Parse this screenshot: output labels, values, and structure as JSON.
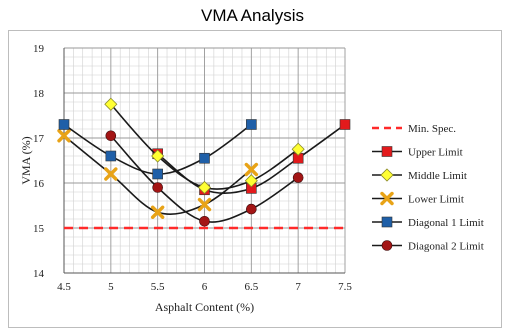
{
  "page_title": "VMA Analysis",
  "chart_data": {
    "type": "line",
    "title": "VMA Analysis",
    "xlabel": "Asphalt Content (%)",
    "ylabel": "VMA (%)",
    "xlim": [
      4.5,
      7.5
    ],
    "ylim": [
      14,
      19
    ],
    "xticks": [
      "4.5",
      "5",
      "5.5",
      "6",
      "6.5",
      "7",
      "7.5"
    ],
    "yticks": [
      "14",
      "15",
      "16",
      "17",
      "18",
      "19"
    ],
    "grid": true,
    "legend_position": "right",
    "series": [
      {
        "name": "Min. Spec.",
        "style": "dashed",
        "marker": "none",
        "color": "#ff2a2a",
        "x": [
          4.5,
          7.5
        ],
        "y": [
          15.0,
          15.0
        ]
      },
      {
        "name": "Upper Limit",
        "style": "solid",
        "marker": "square",
        "color": "#e31a1c",
        "x": [
          5.5,
          6.0,
          6.5,
          7.0,
          7.5
        ],
        "y": [
          16.65,
          15.85,
          15.88,
          16.55,
          17.3
        ]
      },
      {
        "name": "Middle Limit",
        "style": "solid",
        "marker": "diamond",
        "color": "#ffff33",
        "x": [
          5.0,
          5.5,
          6.0,
          6.5,
          7.0
        ],
        "y": [
          17.75,
          16.6,
          15.9,
          16.05,
          16.75
        ]
      },
      {
        "name": "Lower Limit",
        "style": "solid",
        "marker": "x",
        "color": "#e8a317",
        "x": [
          4.5,
          5.0,
          5.5,
          6.0,
          6.5
        ],
        "y": [
          17.05,
          16.2,
          15.35,
          15.52,
          16.3
        ]
      },
      {
        "name": "Diagonal 1 Limit",
        "style": "solid",
        "marker": "square",
        "color": "#1f5fa8",
        "x": [
          4.5,
          5.0,
          5.5,
          6.0,
          6.5
        ],
        "y": [
          17.3,
          16.6,
          16.2,
          16.55,
          17.3
        ]
      },
      {
        "name": "Diagonal 2 Limit",
        "style": "solid",
        "marker": "circle",
        "color": "#a31515",
        "x": [
          5.0,
          5.5,
          6.0,
          6.5,
          7.0
        ],
        "y": [
          17.05,
          15.9,
          15.15,
          15.42,
          16.12
        ]
      }
    ]
  }
}
